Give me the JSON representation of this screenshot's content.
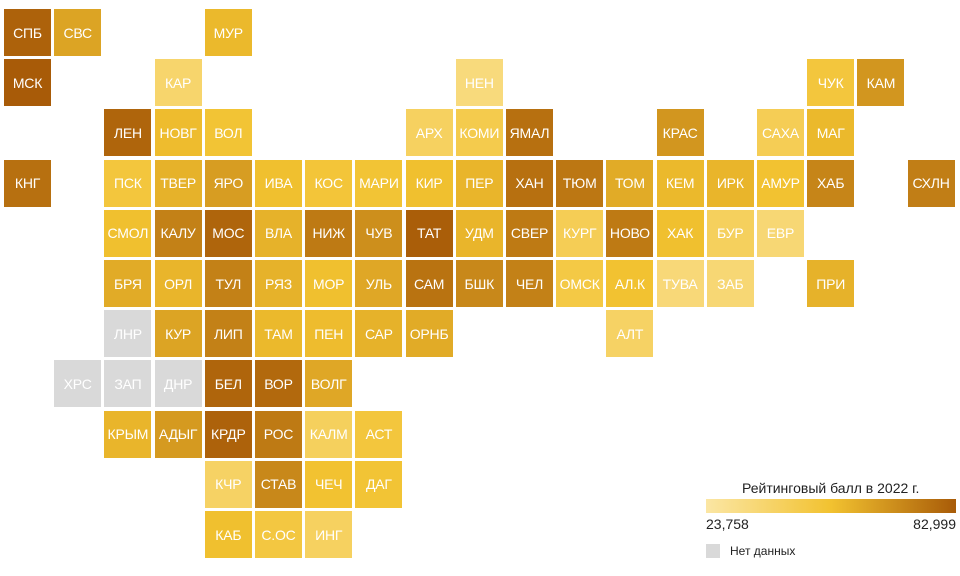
{
  "legend": {
    "title": "Рейтинговый балл в 2022 г.",
    "min_label": "23,758",
    "max_label": "82,999",
    "nodata_label": "Нет данных",
    "min_value": 23.758,
    "max_value": 82.999,
    "color_low": "#fbe6a4",
    "color_mid": "#f2c230",
    "color_high": "#a85b08",
    "nodata_color": "#d9d9d9"
  },
  "regions": [
    {
      "label": "СПБ",
      "col": 0,
      "row": 0,
      "value": 81
    },
    {
      "label": "СВС",
      "col": 1,
      "row": 0,
      "value": 62
    },
    {
      "label": "МУР",
      "col": 4,
      "row": 0,
      "value": 56
    },
    {
      "label": "МСК",
      "col": 0,
      "row": 1,
      "value": 83
    },
    {
      "label": "КАР",
      "col": 3,
      "row": 1,
      "value": 38
    },
    {
      "label": "НЕН",
      "col": 9,
      "row": 1,
      "value": 34
    },
    {
      "label": "ЧУК",
      "col": 16,
      "row": 1,
      "value": 50
    },
    {
      "label": "КАМ",
      "col": 17,
      "row": 1,
      "value": 66
    },
    {
      "label": "ЛЕН",
      "col": 2,
      "row": 2,
      "value": 80
    },
    {
      "label": "НОВГ",
      "col": 3,
      "row": 2,
      "value": 55
    },
    {
      "label": "ВОЛ",
      "col": 4,
      "row": 2,
      "value": 52
    },
    {
      "label": "АРХ",
      "col": 8,
      "row": 2,
      "value": 41
    },
    {
      "label": "КОМИ",
      "col": 9,
      "row": 2,
      "value": 46
    },
    {
      "label": "ЯМАЛ",
      "col": 10,
      "row": 2,
      "value": 77
    },
    {
      "label": "КРАС",
      "col": 13,
      "row": 2,
      "value": 66
    },
    {
      "label": "САХА",
      "col": 15,
      "row": 2,
      "value": 44
    },
    {
      "label": "МАГ",
      "col": 16,
      "row": 2,
      "value": 56
    },
    {
      "label": "КНГ",
      "col": 0,
      "row": 3,
      "value": 77
    },
    {
      "label": "ПСК",
      "col": 2,
      "row": 3,
      "value": 50
    },
    {
      "label": "ТВЕР",
      "col": 3,
      "row": 3,
      "value": 58
    },
    {
      "label": "ЯРО",
      "col": 4,
      "row": 3,
      "value": 64
    },
    {
      "label": "ИВА",
      "col": 5,
      "row": 3,
      "value": 54
    },
    {
      "label": "КОС",
      "col": 6,
      "row": 3,
      "value": 51
    },
    {
      "label": "МАРИ",
      "col": 7,
      "row": 3,
      "value": 52
    },
    {
      "label": "КИР",
      "col": 8,
      "row": 3,
      "value": 54
    },
    {
      "label": "ПЕР",
      "col": 9,
      "row": 3,
      "value": 57
    },
    {
      "label": "ХАН",
      "col": 10,
      "row": 3,
      "value": 77
    },
    {
      "label": "ТЮМ",
      "col": 11,
      "row": 3,
      "value": 75
    },
    {
      "label": "ТОМ",
      "col": 12,
      "row": 3,
      "value": 60
    },
    {
      "label": "КЕМ",
      "col": 13,
      "row": 3,
      "value": 56
    },
    {
      "label": "ИРК",
      "col": 14,
      "row": 3,
      "value": 57
    },
    {
      "label": "АМУР",
      "col": 15,
      "row": 3,
      "value": 53
    },
    {
      "label": "ХАБ",
      "col": 16,
      "row": 3,
      "value": 71
    },
    {
      "label": "СХЛН",
      "col": 18,
      "row": 3,
      "value": 73
    },
    {
      "label": "СМОЛ",
      "col": 2,
      "row": 4,
      "value": 54
    },
    {
      "label": "КАЛУ",
      "col": 3,
      "row": 4,
      "value": 72
    },
    {
      "label": "МОС",
      "col": 4,
      "row": 4,
      "value": 80
    },
    {
      "label": "ВЛА",
      "col": 5,
      "row": 4,
      "value": 58
    },
    {
      "label": "НИЖ",
      "col": 6,
      "row": 4,
      "value": 74
    },
    {
      "label": "ЧУВ",
      "col": 7,
      "row": 4,
      "value": 68
    },
    {
      "label": "ТАТ",
      "col": 8,
      "row": 4,
      "value": 82
    },
    {
      "label": "УДМ",
      "col": 9,
      "row": 4,
      "value": 57
    },
    {
      "label": "СВЕР",
      "col": 10,
      "row": 4,
      "value": 74
    },
    {
      "label": "КУРГ",
      "col": 11,
      "row": 4,
      "value": 44
    },
    {
      "label": "НОВО",
      "col": 12,
      "row": 4,
      "value": 74
    },
    {
      "label": "ХАК",
      "col": 13,
      "row": 4,
      "value": 54
    },
    {
      "label": "БУР",
      "col": 14,
      "row": 4,
      "value": 42
    },
    {
      "label": "ЕВР",
      "col": 15,
      "row": 4,
      "value": 36
    },
    {
      "label": "БРЯ",
      "col": 2,
      "row": 5,
      "value": 60
    },
    {
      "label": "ОРЛ",
      "col": 3,
      "row": 5,
      "value": 57
    },
    {
      "label": "ТУЛ",
      "col": 4,
      "row": 5,
      "value": 72
    },
    {
      "label": "РЯЗ",
      "col": 5,
      "row": 5,
      "value": 58
    },
    {
      "label": "МОР",
      "col": 6,
      "row": 5,
      "value": 54
    },
    {
      "label": "УЛЬ",
      "col": 7,
      "row": 5,
      "value": 61
    },
    {
      "label": "САМ",
      "col": 8,
      "row": 5,
      "value": 76
    },
    {
      "label": "БШК",
      "col": 9,
      "row": 5,
      "value": 70
    },
    {
      "label": "ЧЕЛ",
      "col": 10,
      "row": 5,
      "value": 72
    },
    {
      "label": "ОМСК",
      "col": 11,
      "row": 5,
      "value": 48
    },
    {
      "label": "АЛ.К",
      "col": 12,
      "row": 5,
      "value": 53
    },
    {
      "label": "ТУВА",
      "col": 13,
      "row": 5,
      "value": 35
    },
    {
      "label": "ЗАБ",
      "col": 14,
      "row": 5,
      "value": 36
    },
    {
      "label": "ПРИ",
      "col": 16,
      "row": 5,
      "value": 58
    },
    {
      "label": "ЛНР",
      "col": 2,
      "row": 6,
      "value": null
    },
    {
      "label": "КУР",
      "col": 3,
      "row": 6,
      "value": 62
    },
    {
      "label": "ЛИП",
      "col": 4,
      "row": 6,
      "value": 72
    },
    {
      "label": "ТАМ",
      "col": 5,
      "row": 6,
      "value": 56
    },
    {
      "label": "ПЕН",
      "col": 6,
      "row": 6,
      "value": 55
    },
    {
      "label": "САР",
      "col": 7,
      "row": 6,
      "value": 58
    },
    {
      "label": "ОРНБ",
      "col": 8,
      "row": 6,
      "value": 60
    },
    {
      "label": "АЛТ",
      "col": 12,
      "row": 6,
      "value": 40
    },
    {
      "label": "ХРС",
      "col": 1,
      "row": 7,
      "value": null
    },
    {
      "label": "ЗАП",
      "col": 2,
      "row": 7,
      "value": null
    },
    {
      "label": "ДНР",
      "col": 3,
      "row": 7,
      "value": null
    },
    {
      "label": "БЕЛ",
      "col": 4,
      "row": 7,
      "value": 80
    },
    {
      "label": "ВОР",
      "col": 5,
      "row": 7,
      "value": 79
    },
    {
      "label": "ВОЛГ",
      "col": 6,
      "row": 7,
      "value": 61
    },
    {
      "label": "КРЫМ",
      "col": 2,
      "row": 8,
      "value": 57
    },
    {
      "label": "АДЫГ",
      "col": 3,
      "row": 8,
      "value": 65
    },
    {
      "label": "КРДР",
      "col": 4,
      "row": 8,
      "value": 81
    },
    {
      "label": "РОС",
      "col": 5,
      "row": 8,
      "value": 74
    },
    {
      "label": "КАЛМ",
      "col": 6,
      "row": 8,
      "value": 42
    },
    {
      "label": "АСТ",
      "col": 7,
      "row": 8,
      "value": 50
    },
    {
      "label": "КЧР",
      "col": 4,
      "row": 9,
      "value": 40
    },
    {
      "label": "СТАВ",
      "col": 5,
      "row": 9,
      "value": 70
    },
    {
      "label": "ЧЕЧ",
      "col": 6,
      "row": 9,
      "value": 53
    },
    {
      "label": "ДАГ",
      "col": 7,
      "row": 9,
      "value": 52
    },
    {
      "label": "КАБ",
      "col": 4,
      "row": 10,
      "value": 54
    },
    {
      "label": "С.ОС",
      "col": 5,
      "row": 10,
      "value": 49
    },
    {
      "label": "ИНГ",
      "col": 6,
      "row": 10,
      "value": 41
    }
  ]
}
